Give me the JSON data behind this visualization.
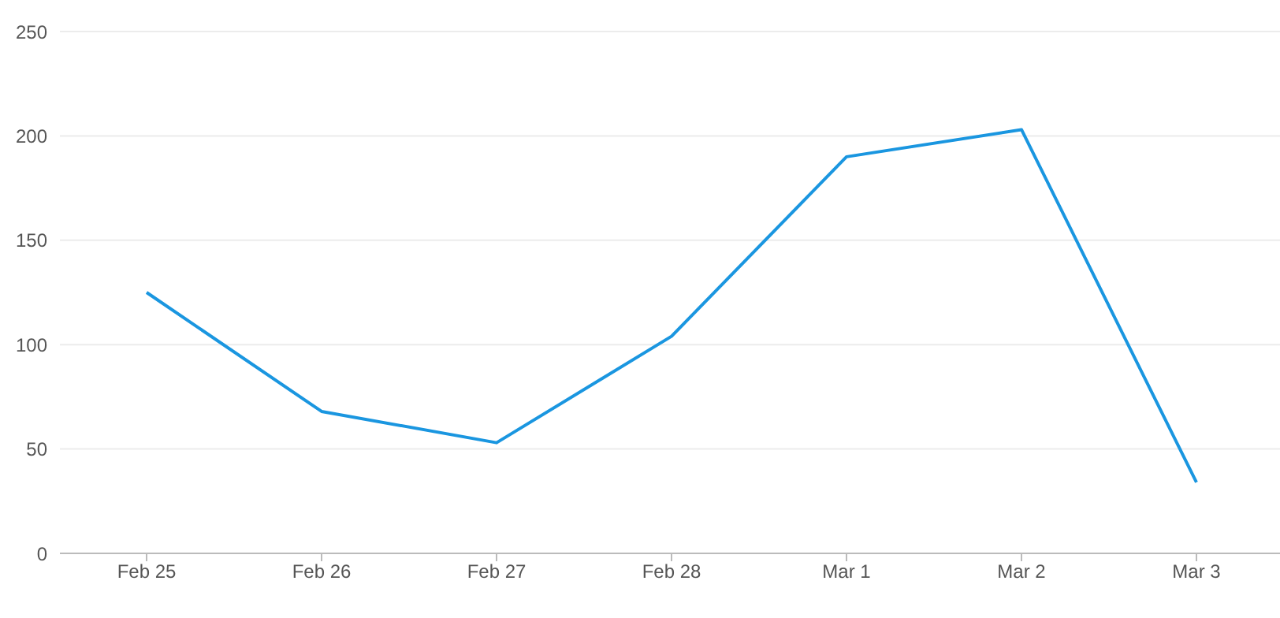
{
  "chart_data": {
    "type": "line",
    "categories": [
      "Feb 25",
      "Feb 26",
      "Feb 27",
      "Feb 28",
      "Mar 1",
      "Mar 2",
      "Mar 3"
    ],
    "series": [
      {
        "color": "#1a96e0",
        "values": [
          125,
          68,
          53,
          104,
          190,
          203,
          34
        ]
      }
    ],
    "ylim": [
      0,
      250
    ],
    "yticks": [
      0,
      50,
      100,
      150,
      200,
      250
    ],
    "grid": "y",
    "marker": "none",
    "line_style": "solid"
  }
}
